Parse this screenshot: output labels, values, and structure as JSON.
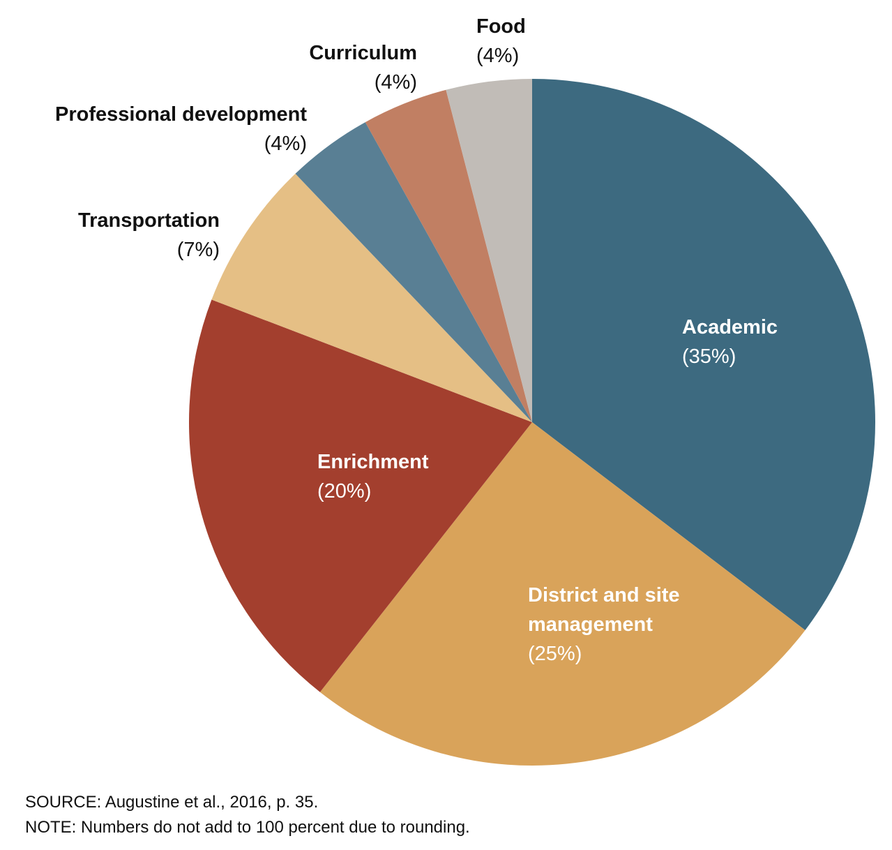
{
  "chart_data": {
    "type": "pie",
    "categories": [
      "Academic",
      "District and site management",
      "Enrichment",
      "Transportation",
      "Professional development",
      "Curriculum",
      "Food"
    ],
    "values": [
      35,
      25,
      20,
      7,
      4,
      4,
      4
    ],
    "value_labels": [
      "(35%)",
      "(25%)",
      "(20%)",
      "(7%)",
      "(4%)",
      "(4%)",
      "(4%)"
    ],
    "colors": [
      "#3d6a80",
      "#d9a35a",
      "#a33f2e",
      "#e5bf85",
      "#597f94",
      "#c17f63",
      "#c1bcb7"
    ],
    "notes": [
      "SOURCE: Augustine et al., 2016, p. 35.",
      "NOTE: Numbers do not add to 100 percent due to rounding."
    ]
  }
}
